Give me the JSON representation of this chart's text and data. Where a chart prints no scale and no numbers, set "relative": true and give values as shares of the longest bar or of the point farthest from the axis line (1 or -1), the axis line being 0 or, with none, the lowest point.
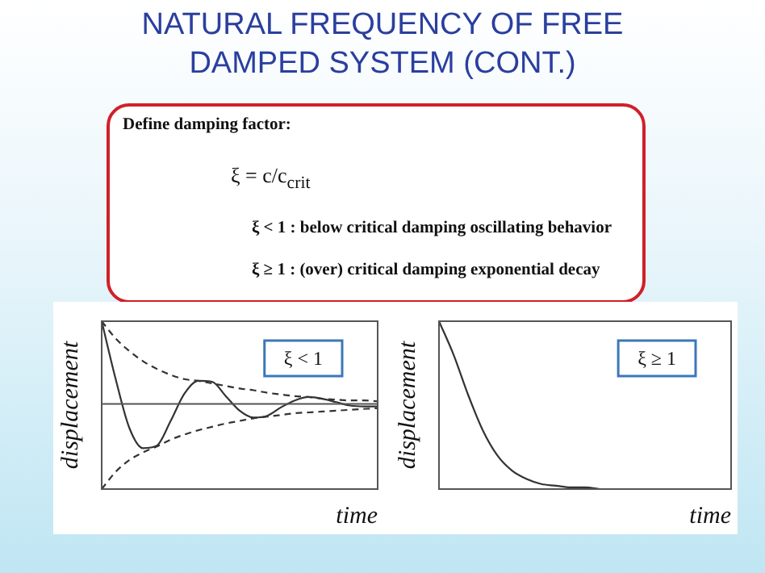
{
  "chart_data": [
    {
      "type": "other",
      "title": "NATURAL FREQUENCY OF FREE DAMPED SYSTEM (CONT.)",
      "annotations": [
        "Define damping factor:",
        "ξ = c/c$_{crit}$",
        "ξ < 1 : below critical damping oscillating behavior",
        "ξ ≥ 1 : (over) critical damping exponential decay"
      ]
    },
    {
      "type": "line",
      "relative": true,
      "xlabel": "time",
      "ylabel": "displacement",
      "annotations": [
        "ξ < 1"
      ],
      "ref_lines": [
        {
          "axis": "y",
          "value": 0,
          "color": "#555555"
        }
      ],
      "categories": [
        null,
        null,
        null,
        null,
        null,
        null,
        null,
        null,
        null,
        null,
        null,
        null,
        null,
        null,
        null,
        null,
        null,
        null,
        null,
        null,
        null
      ],
      "series": [
        {
          "color": "#333333",
          "line_style": "solid",
          "values": [
            0.97,
            0.3,
            -0.28,
            -0.52,
            -0.49,
            -0.2,
            0.12,
            0.27,
            0.26,
            0.09,
            -0.08,
            -0.16,
            -0.14,
            -0.04,
            0.04,
            0.08,
            0.06,
            0.02,
            -0.02,
            -0.03,
            -0.03
          ]
        },
        {
          "color": "#333333",
          "line_style": "dashed",
          "values": [
            0.97,
            0.77,
            0.62,
            0.5,
            0.41,
            0.34,
            0.29,
            0.27,
            0.24,
            0.21,
            0.18,
            0.16,
            0.13,
            0.11,
            0.09,
            0.08,
            0.06,
            0.05,
            0.04,
            0.04,
            0.03
          ]
        },
        {
          "color": "#333333",
          "line_style": "dashed",
          "values": [
            -1.0,
            -0.8,
            -0.66,
            -0.57,
            -0.5,
            -0.42,
            -0.36,
            -0.31,
            -0.27,
            -0.23,
            -0.2,
            -0.17,
            -0.15,
            -0.13,
            -0.11,
            -0.1,
            -0.09,
            -0.08,
            -0.07,
            -0.06,
            -0.05
          ]
        }
      ]
    },
    {
      "type": "line",
      "relative": true,
      "xlabel": "time",
      "ylabel": "displacement",
      "annotations": [
        "ξ ≥ 1"
      ],
      "categories": [
        null,
        null,
        null,
        null,
        null,
        null,
        null,
        null,
        null,
        null,
        null,
        null,
        null,
        null,
        null,
        null,
        null,
        null,
        null,
        null,
        null
      ],
      "series": [
        {
          "color": "#333333",
          "line_style": "solid",
          "values": [
            1.0,
            0.8,
            0.56,
            0.35,
            0.2,
            0.11,
            0.06,
            0.03,
            0.02,
            0.01,
            0.01,
            0,
            null,
            null,
            null,
            null,
            null,
            null,
            null,
            null,
            null
          ]
        }
      ]
    }
  ]
}
